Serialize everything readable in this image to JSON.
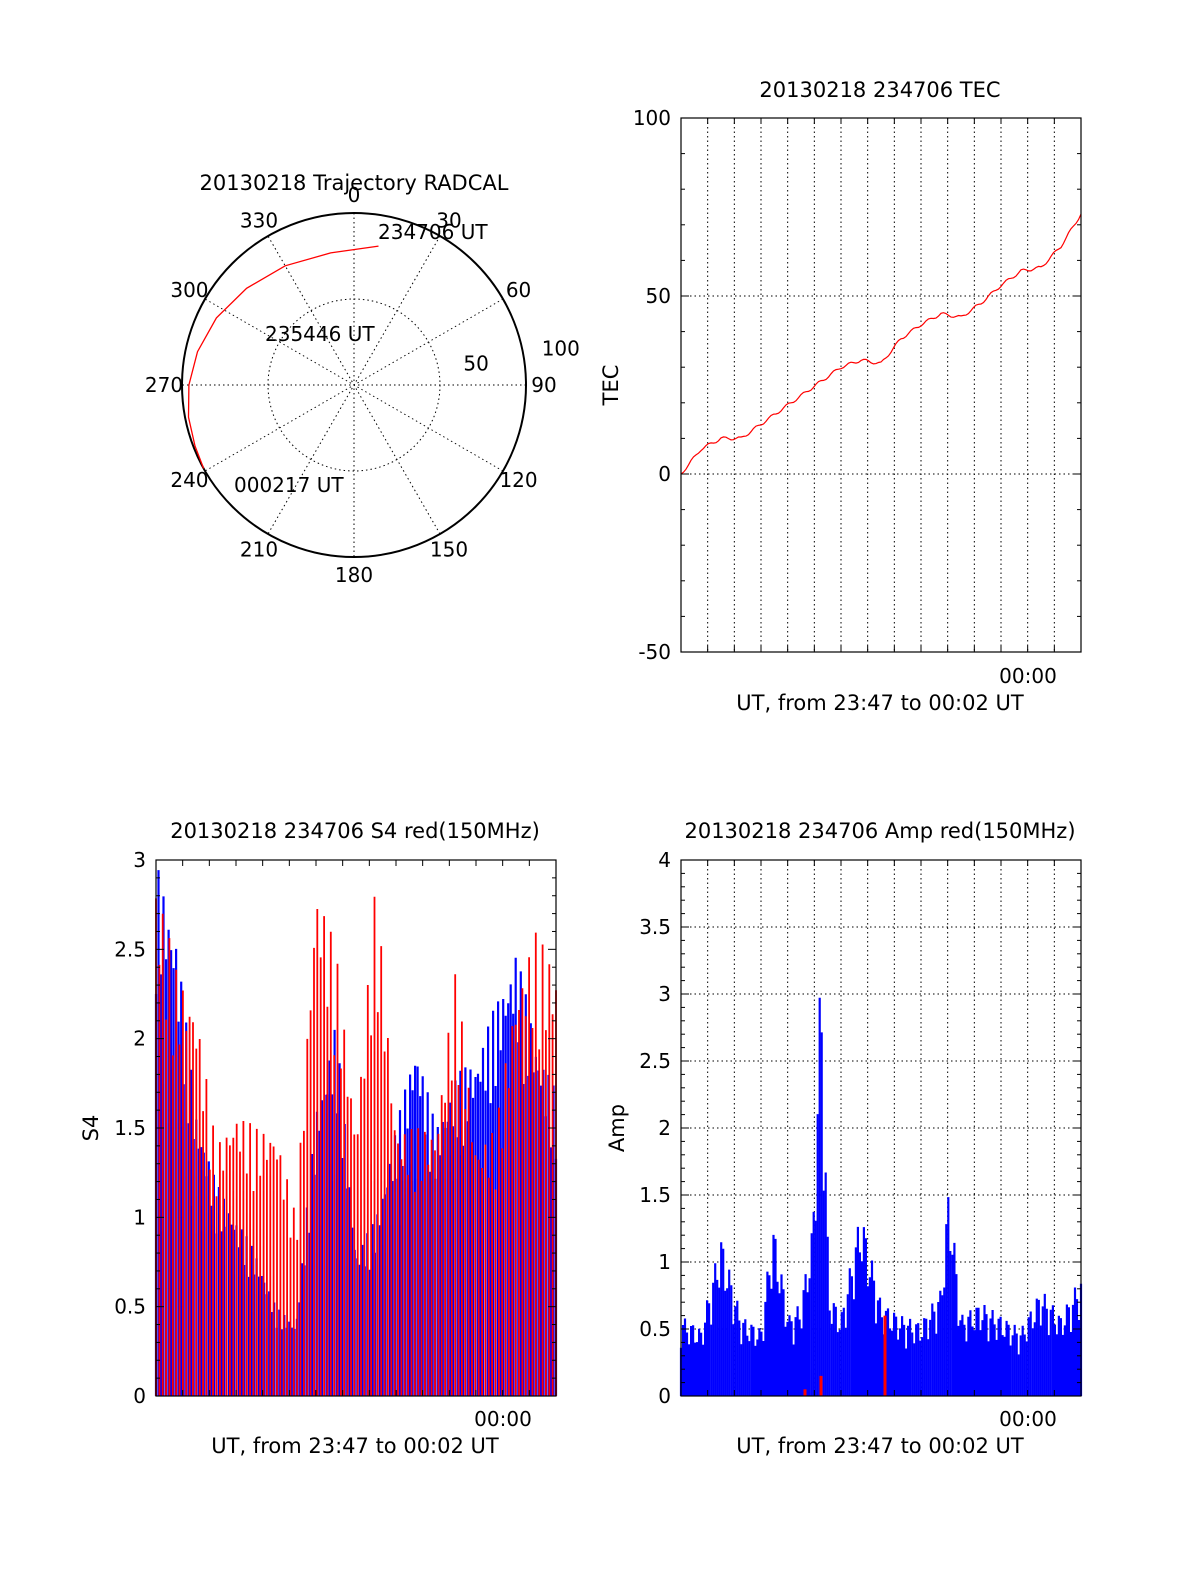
{
  "colors": {
    "red": "#ff0000",
    "blue": "#0000ff",
    "axis": "#000000"
  },
  "chart_data": [
    {
      "type": "polar",
      "title": "20130218 Trajectory RADCAL",
      "angle_labels": [
        "0",
        "30",
        "60",
        "90",
        "120",
        "150",
        "180",
        "210",
        "240",
        "270",
        "300",
        "330"
      ],
      "radial_labels": [
        "50",
        "100"
      ],
      "annotations": [
        "234706 UT",
        "235446 UT",
        "000217 UT"
      ],
      "series": [
        {
          "color": "red",
          "points": [
            {
              "az": 10,
              "zen": 82
            },
            {
              "az": 350,
              "zen": 78
            },
            {
              "az": 330,
              "zen": 80
            },
            {
              "az": 312,
              "zen": 84
            },
            {
              "az": 296,
              "zen": 89
            },
            {
              "az": 282,
              "zen": 93
            },
            {
              "az": 270,
              "zen": 96
            },
            {
              "az": 259,
              "zen": 98
            },
            {
              "az": 249,
              "zen": 99
            },
            {
              "az": 241,
              "zen": 100
            }
          ]
        }
      ]
    },
    {
      "type": "line",
      "title": "20130218 234706 TEC",
      "xlabel": "UT, from 23:47 to 00:02 UT",
      "ylabel": "TEC",
      "x_tick_labels": [
        "00:00"
      ],
      "yticks": [
        "100",
        "50",
        "0",
        "-50"
      ],
      "ylim": [
        -50,
        100
      ],
      "series": [
        {
          "color": "red",
          "x": [
            0,
            0.05,
            0.1,
            0.15,
            0.2,
            0.25,
            0.3,
            0.35,
            0.4,
            0.45,
            0.5,
            0.55,
            0.6,
            0.65,
            0.7,
            0.75,
            0.8,
            0.85,
            0.9,
            0.95,
            1.0
          ],
          "values": [
            0,
            7,
            10,
            10,
            14,
            18,
            22,
            26,
            30,
            32,
            31,
            38,
            42,
            45,
            44,
            48,
            53,
            57,
            58,
            64,
            73
          ]
        }
      ]
    },
    {
      "type": "bar",
      "title": "20130218 234706 S4 red(150MHz)",
      "xlabel": "UT, from 23:47 to 00:02 UT",
      "ylabel": "S4",
      "x_tick_labels": [
        "00:00"
      ],
      "yticks": [
        "3",
        "2.5",
        "2",
        "1.5",
        "1",
        "0.5",
        "0"
      ],
      "ylim": [
        0,
        3
      ],
      "series": [
        {
          "color": "blue",
          "x": [
            0,
            0.05,
            0.1,
            0.15,
            0.2,
            0.25,
            0.3,
            0.35,
            0.4,
            0.45,
            0.5,
            0.55,
            0.6,
            0.65,
            0.7,
            0.75,
            0.8,
            0.85,
            0.9,
            0.95,
            1.0
          ],
          "values": [
            3.0,
            2.6,
            1.6,
            1.2,
            1.0,
            0.8,
            0.5,
            0.4,
            1.6,
            2.1,
            0.8,
            1.0,
            1.5,
            2.0,
            1.5,
            1.8,
            1.9,
            2.2,
            2.5,
            2.0,
            1.7
          ]
        },
        {
          "color": "red",
          "x": [
            0,
            0.05,
            0.1,
            0.15,
            0.2,
            0.25,
            0.3,
            0.35,
            0.4,
            0.45,
            0.5,
            0.55,
            0.6,
            0.65,
            0.7,
            0.75,
            0.8,
            0.85,
            0.9,
            0.95,
            1.0
          ],
          "values": [
            2.9,
            2.4,
            2.2,
            1.4,
            1.6,
            1.5,
            1.5,
            1.0,
            2.9,
            2.5,
            1.5,
            2.9,
            1.5,
            1.5,
            1.5,
            2.4,
            1.4,
            1.5,
            2.3,
            2.6,
            2.4
          ]
        }
      ]
    },
    {
      "type": "bar",
      "title": "20130218 234706 Amp red(150MHz)",
      "xlabel": "UT, from 23:47 to 00:02 UT",
      "ylabel": "Amp",
      "x_tick_labels": [
        "00:00"
      ],
      "yticks": [
        "4",
        "3.5",
        "3",
        "2.5",
        "2",
        "1.5",
        "1",
        "0.5",
        "0"
      ],
      "ylim": [
        0,
        4
      ],
      "series": [
        {
          "color": "blue",
          "x": [
            0,
            0.05,
            0.1,
            0.15,
            0.2,
            0.23,
            0.27,
            0.3,
            0.33,
            0.35,
            0.37,
            0.4,
            0.45,
            0.5,
            0.55,
            0.6,
            0.65,
            0.67,
            0.7,
            0.75,
            0.8,
            0.85,
            0.9,
            0.95,
            1.0
          ],
          "values": [
            0.6,
            0.5,
            1.2,
            0.6,
            0.5,
            1.3,
            0.6,
            0.7,
            1.3,
            3.3,
            0.8,
            0.6,
            1.4,
            0.7,
            0.6,
            0.55,
            0.8,
            1.6,
            0.6,
            0.7,
            0.6,
            0.5,
            0.8,
            0.6,
            0.9
          ]
        },
        {
          "color": "red",
          "x": [
            0.31,
            0.35,
            0.51
          ],
          "values": [
            0.05,
            0.15,
            0.6
          ]
        }
      ]
    }
  ]
}
